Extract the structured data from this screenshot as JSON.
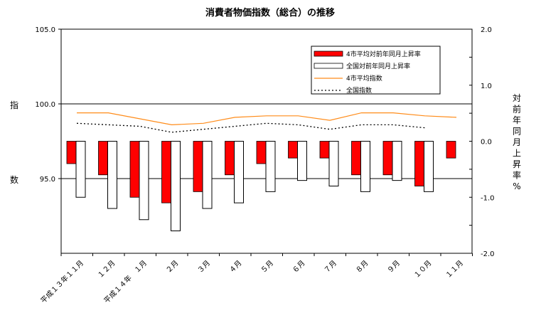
{
  "chart_data": {
    "type": "bar",
    "title": "消費者物価指数（総合）の推移",
    "categories": [
      "平成１３年１１月",
      "１２月",
      "平成１４年　１月",
      "２月",
      "３月",
      "４月",
      "５月",
      "６月",
      "７月",
      "８月",
      "９月",
      "１０月",
      "１１月"
    ],
    "left_axis": {
      "label_chars": [
        "指",
        "数"
      ],
      "ylim": [
        90.0,
        105.0
      ],
      "ticks": [
        "105.0",
        "100.0",
        "95.0"
      ],
      "tick_values": [
        105,
        100,
        95
      ]
    },
    "right_axis": {
      "label_chars": [
        "対",
        "前",
        "年",
        "同",
        "月",
        "上",
        "昇",
        "率",
        "%"
      ],
      "ylim": [
        -2.0,
        2.0
      ],
      "ticks": [
        "2.0",
        "1.0",
        "0.0",
        "-1.0",
        "-2.0"
      ],
      "tick_values": [
        2,
        1,
        0,
        -1,
        -2
      ]
    },
    "series": [
      {
        "name": "4市平均対前年同月上昇率",
        "kind": "bar",
        "axis": "right",
        "color": "#ff0000",
        "values": [
          -0.4,
          -0.6,
          -1.0,
          -1.1,
          -0.9,
          -0.6,
          -0.4,
          -0.3,
          -0.3,
          -0.6,
          -0.6,
          -0.8,
          -0.3
        ]
      },
      {
        "name": "全国対前年同月上昇率",
        "kind": "bar",
        "axis": "right",
        "color": "#ffffff",
        "values": [
          -1.0,
          -1.2,
          -1.4,
          -1.6,
          -1.2,
          -1.1,
          -0.9,
          -0.7,
          -0.8,
          -0.9,
          -0.7,
          -0.9,
          null
        ]
      },
      {
        "name": "4市平均指数",
        "kind": "line",
        "axis": "left",
        "color": "#ff8c1a",
        "values": [
          99.4,
          99.4,
          99.0,
          98.6,
          98.7,
          99.1,
          99.2,
          99.2,
          98.9,
          99.4,
          99.4,
          99.2,
          99.1
        ]
      },
      {
        "name": "全国指数",
        "kind": "dotted-line",
        "axis": "left",
        "color": "#000000",
        "values": [
          98.7,
          98.6,
          98.5,
          98.1,
          98.3,
          98.5,
          98.7,
          98.6,
          98.3,
          98.6,
          98.6,
          98.4,
          null
        ]
      }
    ],
    "legend_position": "top-right"
  }
}
